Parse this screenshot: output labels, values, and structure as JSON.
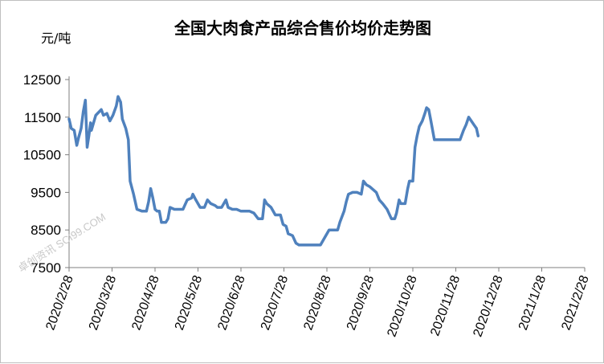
{
  "chart_data": {
    "type": "line",
    "title": "全国大肉食产品综合售价均价走势图",
    "ylabel": "元/吨",
    "ylim": [
      7500,
      12500
    ],
    "yticks": [
      7500,
      8500,
      9500,
      10500,
      11500,
      12500
    ],
    "xticks": [
      "2020/2/28",
      "2020/3/28",
      "2020/4/28",
      "2020/5/28",
      "2020/6/28",
      "2020/7/28",
      "2020/8/28",
      "2020/9/28",
      "2020/10/28",
      "2020/11/28",
      "2020/12/28",
      "2021/1/28",
      "2021/2/28"
    ],
    "series_color": "#4f81bd",
    "watermark": "卓创资讯 SCI99.COM",
    "series": [
      {
        "points": [
          [
            0,
            11450
          ],
          [
            0.05,
            11200
          ],
          [
            0.12,
            11150
          ],
          [
            0.18,
            10750
          ],
          [
            0.22,
            10950
          ],
          [
            0.28,
            11200
          ],
          [
            0.33,
            11650
          ],
          [
            0.38,
            11950
          ],
          [
            0.42,
            10700
          ],
          [
            0.46,
            11000
          ],
          [
            0.5,
            11350
          ],
          [
            0.52,
            11150
          ],
          [
            0.62,
            11550
          ],
          [
            0.75,
            11700
          ],
          [
            0.8,
            11550
          ],
          [
            0.88,
            11600
          ],
          [
            0.95,
            11400
          ],
          [
            1.02,
            11550
          ],
          [
            1.1,
            11800
          ],
          [
            1.14,
            12050
          ],
          [
            1.2,
            11900
          ],
          [
            1.24,
            11450
          ],
          [
            1.32,
            11200
          ],
          [
            1.38,
            10900
          ],
          [
            1.42,
            9800
          ],
          [
            1.5,
            9450
          ],
          [
            1.58,
            9050
          ],
          [
            1.7,
            9000
          ],
          [
            1.8,
            9000
          ],
          [
            1.85,
            9250
          ],
          [
            1.9,
            9600
          ],
          [
            1.95,
            9350
          ],
          [
            2.0,
            9050
          ],
          [
            2.05,
            9000
          ],
          [
            2.1,
            9000
          ],
          [
            2.15,
            8700
          ],
          [
            2.25,
            8700
          ],
          [
            2.3,
            8800
          ],
          [
            2.35,
            9100
          ],
          [
            2.45,
            9050
          ],
          [
            2.55,
            9050
          ],
          [
            2.65,
            9050
          ],
          [
            2.75,
            9300
          ],
          [
            2.85,
            9350
          ],
          [
            2.88,
            9450
          ],
          [
            2.95,
            9300
          ],
          [
            3.05,
            9100
          ],
          [
            3.15,
            9100
          ],
          [
            3.22,
            9300
          ],
          [
            3.3,
            9200
          ],
          [
            3.4,
            9150
          ],
          [
            3.45,
            9100
          ],
          [
            3.55,
            9100
          ],
          [
            3.65,
            9300
          ],
          [
            3.7,
            9100
          ],
          [
            3.8,
            9050
          ],
          [
            3.9,
            9050
          ],
          [
            4.0,
            9000
          ],
          [
            4.1,
            9000
          ],
          [
            4.2,
            9000
          ],
          [
            4.3,
            8950
          ],
          [
            4.4,
            8800
          ],
          [
            4.5,
            8800
          ],
          [
            4.55,
            9300
          ],
          [
            4.6,
            9200
          ],
          [
            4.7,
            9100
          ],
          [
            4.8,
            8900
          ],
          [
            4.92,
            8900
          ],
          [
            4.98,
            8650
          ],
          [
            5.05,
            8600
          ],
          [
            5.1,
            8400
          ],
          [
            5.2,
            8350
          ],
          [
            5.28,
            8150
          ],
          [
            5.35,
            8100
          ],
          [
            5.45,
            8100
          ],
          [
            5.55,
            8100
          ],
          [
            5.7,
            8100
          ],
          [
            5.85,
            8100
          ],
          [
            5.95,
            8300
          ],
          [
            6.05,
            8500
          ],
          [
            6.15,
            8500
          ],
          [
            6.25,
            8500
          ],
          [
            6.3,
            8700
          ],
          [
            6.4,
            9000
          ],
          [
            6.45,
            9250
          ],
          [
            6.5,
            9450
          ],
          [
            6.6,
            9500
          ],
          [
            6.7,
            9500
          ],
          [
            6.8,
            9450
          ],
          [
            6.85,
            9800
          ],
          [
            6.92,
            9700
          ],
          [
            7.0,
            9650
          ],
          [
            7.1,
            9550
          ],
          [
            7.15,
            9500
          ],
          [
            7.22,
            9300
          ],
          [
            7.3,
            9200
          ],
          [
            7.4,
            9050
          ],
          [
            7.5,
            8800
          ],
          [
            7.58,
            8800
          ],
          [
            7.62,
            8950
          ],
          [
            7.68,
            9300
          ],
          [
            7.72,
            9200
          ],
          [
            7.82,
            9200
          ],
          [
            7.88,
            9600
          ],
          [
            7.92,
            9800
          ],
          [
            8.0,
            9800
          ],
          [
            8.05,
            10700
          ],
          [
            8.1,
            11000
          ],
          [
            8.15,
            11250
          ],
          [
            8.22,
            11400
          ],
          [
            8.28,
            11600
          ],
          [
            8.32,
            11750
          ],
          [
            8.37,
            11700
          ],
          [
            8.42,
            11400
          ],
          [
            8.5,
            10900
          ],
          [
            8.6,
            10900
          ],
          [
            8.7,
            10900
          ],
          [
            8.8,
            10900
          ],
          [
            8.9,
            10900
          ],
          [
            9.0,
            10900
          ],
          [
            9.1,
            10900
          ],
          [
            9.18,
            11150
          ],
          [
            9.24,
            11300
          ],
          [
            9.3,
            11500
          ],
          [
            9.36,
            11400
          ],
          [
            9.42,
            11300
          ],
          [
            9.48,
            11200
          ],
          [
            9.52,
            11000
          ]
        ]
      }
    ]
  }
}
